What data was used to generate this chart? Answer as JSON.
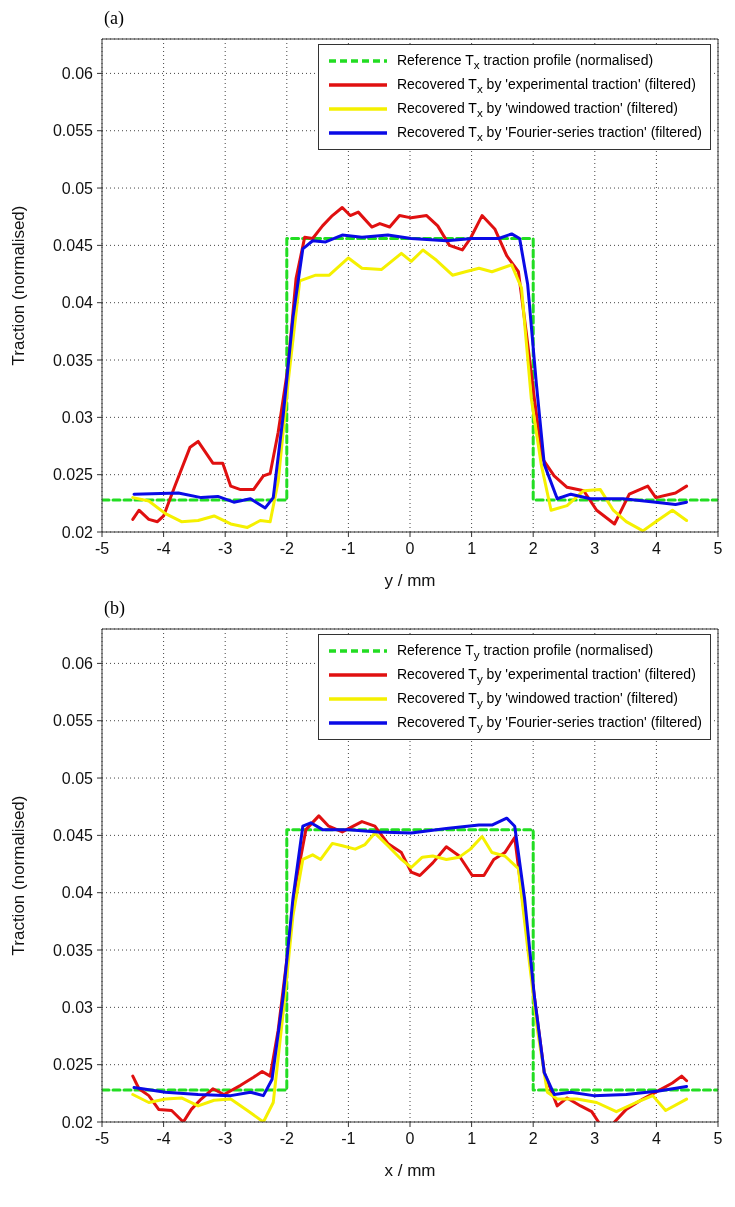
{
  "chart_data": [
    {
      "type": "line",
      "title": "(a)",
      "xlabel": "y / mm",
      "ylabel": "Traction (normalised)",
      "xlim": [
        -5,
        5
      ],
      "xticks": [
        -5,
        -4,
        -3,
        -2,
        -1,
        0,
        1,
        2,
        3,
        4,
        5
      ],
      "ylim": [
        0.02,
        0.063
      ],
      "yticks": [
        0.02,
        0.025,
        0.03,
        0.035,
        0.04,
        0.045,
        0.05,
        0.055,
        0.06
      ],
      "grid": true,
      "legend": "top right",
      "marker": "none",
      "series": [
        {
          "name": "Reference T$_{x}$ traction profile (normalised)",
          "color": "#22dd22",
          "line_style": "dashed",
          "x": [
            -5,
            -2,
            -2,
            2,
            2,
            5
          ],
          "values": [
            0.0228,
            0.0228,
            0.0456,
            0.0456,
            0.0228,
            0.0228
          ]
        },
        {
          "name": "Recovered T$_{x}$ by 'experimental traction' (filtered)",
          "color": "#e01010",
          "line_style": "solid",
          "x": [
            -4.5,
            -4.4,
            -4.24,
            -4.1,
            -4.0,
            -3.81,
            -3.57,
            -3.44,
            -3.2,
            -3.04,
            -2.91,
            -2.75,
            -2.54,
            -2.38,
            -2.27,
            -2.14,
            -1.98,
            -1.85,
            -1.71,
            -1.58,
            -1.42,
            -1.26,
            -1.1,
            -0.97,
            -0.84,
            -0.62,
            -0.49,
            -0.33,
            -0.17,
            0.02,
            0.27,
            0.45,
            0.64,
            0.85,
            0.98,
            1.17,
            1.38,
            1.57,
            1.76,
            1.89,
            2.02,
            2.15,
            2.34,
            2.55,
            2.82,
            3.03,
            3.32,
            3.56,
            3.86,
            3.99,
            4.31,
            4.49
          ],
          "values": [
            0.0211,
            0.0219,
            0.0211,
            0.0209,
            0.0214,
            0.0241,
            0.0274,
            0.0279,
            0.026,
            0.026,
            0.024,
            0.0237,
            0.0237,
            0.0249,
            0.0251,
            0.0287,
            0.0344,
            0.0421,
            0.0457,
            0.0456,
            0.0467,
            0.0476,
            0.0483,
            0.0476,
            0.0479,
            0.0466,
            0.0469,
            0.0466,
            0.0476,
            0.0474,
            0.0476,
            0.0467,
            0.045,
            0.0446,
            0.0456,
            0.0476,
            0.0464,
            0.0441,
            0.0427,
            0.0373,
            0.0316,
            0.0264,
            0.0249,
            0.0239,
            0.0236,
            0.0219,
            0.0207,
            0.0233,
            0.024,
            0.023,
            0.0234,
            0.024
          ]
        },
        {
          "name": "Recovered T$_{x}$ by 'windowed traction' (filtered)",
          "color": "#f5f000",
          "line_style": "solid",
          "x": [
            -4.5,
            -4.24,
            -3.97,
            -3.71,
            -3.44,
            -3.18,
            -2.91,
            -2.64,
            -2.43,
            -2.27,
            -2.14,
            -1.98,
            -1.79,
            -1.53,
            -1.31,
            -1.0,
            -0.78,
            -0.46,
            -0.14,
            0.02,
            0.21,
            0.43,
            0.69,
            0.9,
            1.12,
            1.33,
            1.65,
            1.81,
            1.97,
            2.13,
            2.29,
            2.55,
            2.82,
            3.09,
            3.3,
            3.51,
            3.78,
            3.99,
            4.26,
            4.49
          ],
          "values": [
            0.023,
            0.0227,
            0.0216,
            0.0209,
            0.021,
            0.0214,
            0.0207,
            0.0204,
            0.021,
            0.0209,
            0.0244,
            0.033,
            0.0419,
            0.0424,
            0.0424,
            0.0439,
            0.043,
            0.0429,
            0.0443,
            0.0436,
            0.0446,
            0.0437,
            0.0424,
            0.0427,
            0.043,
            0.0427,
            0.0433,
            0.0413,
            0.0316,
            0.0259,
            0.0219,
            0.0223,
            0.0236,
            0.0237,
            0.0219,
            0.0209,
            0.0201,
            0.0209,
            0.0219,
            0.021
          ]
        },
        {
          "name": "Recovered T$_{x}$ by 'Fourier-series traction' (filtered)",
          "color": "#0a0ae6",
          "line_style": "solid",
          "x": [
            -4.48,
            -3.76,
            -3.39,
            -3.12,
            -2.86,
            -2.59,
            -2.35,
            -2.22,
            -2.06,
            -1.9,
            -1.74,
            -1.58,
            -1.37,
            -1.1,
            -0.78,
            -0.36,
            0.02,
            0.59,
            1.01,
            1.44,
            1.65,
            1.78,
            1.91,
            2.05,
            2.18,
            2.39,
            2.61,
            2.93,
            3.46,
            3.99,
            4.31,
            4.49
          ],
          "values": [
            0.0233,
            0.0234,
            0.023,
            0.0231,
            0.0226,
            0.0229,
            0.0221,
            0.023,
            0.0301,
            0.0387,
            0.0447,
            0.0454,
            0.0453,
            0.0459,
            0.0457,
            0.0459,
            0.0456,
            0.0454,
            0.0456,
            0.0456,
            0.046,
            0.0456,
            0.0416,
            0.033,
            0.0259,
            0.0229,
            0.0233,
            0.0229,
            0.0229,
            0.0226,
            0.0224,
            0.0226
          ]
        }
      ]
    },
    {
      "type": "line",
      "title": "(b)",
      "xlabel": "x / mm",
      "ylabel": "Traction (normalised)",
      "xlim": [
        -5,
        5
      ],
      "xticks": [
        -5,
        -4,
        -3,
        -2,
        -1,
        0,
        1,
        2,
        3,
        4,
        5
      ],
      "ylim": [
        0.02,
        0.063
      ],
      "yticks": [
        0.02,
        0.025,
        0.03,
        0.035,
        0.04,
        0.045,
        0.05,
        0.055,
        0.06
      ],
      "grid": true,
      "legend": "top right",
      "marker": "none",
      "series": [
        {
          "name": "Reference T$_{y}$ traction profile (normalised)",
          "color": "#22dd22",
          "line_style": "dashed",
          "x": [
            -5,
            -2,
            -2,
            2,
            2,
            5
          ],
          "values": [
            0.0228,
            0.0228,
            0.0455,
            0.0455,
            0.0228,
            0.0228
          ]
        },
        {
          "name": "Recovered T$_{y}$ by 'experimental traction' (filtered)",
          "color": "#e01010",
          "line_style": "solid",
          "x": [
            -4.5,
            -4.4,
            -4.24,
            -4.08,
            -3.87,
            -3.68,
            -3.55,
            -3.39,
            -3.2,
            -3.02,
            -2.75,
            -2.54,
            -2.4,
            -2.27,
            -2.14,
            -2.01,
            -1.85,
            -1.69,
            -1.48,
            -1.32,
            -1.1,
            -0.78,
            -0.57,
            -0.36,
            -0.14,
            0.02,
            0.16,
            0.37,
            0.59,
            0.8,
            1.01,
            1.2,
            1.36,
            1.54,
            1.7,
            1.86,
            2.02,
            2.18,
            2.39,
            2.55,
            2.77,
            2.95,
            3.06,
            3.2,
            3.32,
            3.51,
            3.78,
            3.99,
            4.26,
            4.41,
            4.49
          ],
          "values": [
            0.024,
            0.0229,
            0.0223,
            0.0211,
            0.021,
            0.02,
            0.0211,
            0.022,
            0.0229,
            0.0224,
            0.0232,
            0.0239,
            0.0244,
            0.024,
            0.028,
            0.0337,
            0.0409,
            0.0455,
            0.0467,
            0.0458,
            0.0453,
            0.0462,
            0.0458,
            0.0443,
            0.0435,
            0.0418,
            0.0415,
            0.0426,
            0.044,
            0.0432,
            0.0415,
            0.0415,
            0.0429,
            0.0435,
            0.0448,
            0.038,
            0.0309,
            0.0243,
            0.0214,
            0.0221,
            0.0214,
            0.0209,
            0.02,
            null,
            0.02,
            0.0211,
            0.022,
            0.0226,
            0.0234,
            0.024,
            0.0236
          ]
        },
        {
          "name": "Recovered T$_{y}$ by 'windowed traction' (filtered)",
          "color": "#f5f000",
          "line_style": "solid",
          "x": [
            -4.5,
            -4.24,
            -3.97,
            -3.71,
            -3.44,
            -3.18,
            -2.91,
            -2.64,
            -2.38,
            -2.22,
            -2.06,
            -1.9,
            -1.74,
            -1.58,
            -1.45,
            -1.26,
            -1.1,
            -0.89,
            -0.73,
            -0.57,
            -0.36,
            -0.14,
            0.02,
            0.2,
            0.37,
            0.59,
            0.8,
            0.98,
            1.17,
            1.33,
            1.54,
            1.76,
            1.91,
            2.07,
            2.23,
            2.39,
            2.71,
            3.03,
            3.35,
            3.67,
            3.94,
            4.15,
            4.49
          ],
          "values": [
            0.0224,
            0.0217,
            0.022,
            0.0221,
            0.0214,
            0.0219,
            0.022,
            0.021,
            0.02,
            0.0217,
            0.0295,
            0.038,
            0.0429,
            0.0433,
            0.0429,
            0.0443,
            0.0441,
            0.0438,
            0.0442,
            0.0452,
            0.0441,
            0.0429,
            0.0422,
            0.0431,
            0.0432,
            0.0429,
            0.0431,
            0.0438,
            0.0449,
            0.0435,
            0.0432,
            0.0421,
            0.0352,
            0.028,
            0.0226,
            0.022,
            0.022,
            0.0217,
            0.0209,
            0.0217,
            0.0223,
            0.021,
            0.022
          ]
        },
        {
          "name": "Recovered T$_{y}$ by 'Fourier-series traction' (filtered)",
          "color": "#0a0ae6",
          "line_style": "solid",
          "x": [
            -4.48,
            -3.97,
            -3.44,
            -2.91,
            -2.59,
            -2.38,
            -2.24,
            -2.06,
            -1.9,
            -1.74,
            -1.61,
            -1.42,
            -1.0,
            -0.52,
            0.02,
            0.59,
            1.12,
            1.33,
            1.57,
            1.7,
            1.86,
            2.02,
            2.18,
            2.34,
            2.61,
            2.98,
            3.51,
            4.04,
            4.49
          ],
          "values": [
            0.023,
            0.0226,
            0.0224,
            0.0223,
            0.0226,
            0.0223,
            0.0237,
            0.0309,
            0.0395,
            0.0458,
            0.0461,
            0.0455,
            0.0455,
            0.0453,
            0.0452,
            0.0456,
            0.0459,
            0.0459,
            0.0465,
            0.0458,
            0.0395,
            0.0309,
            0.0243,
            0.0224,
            0.0226,
            0.0223,
            0.0224,
            0.0227,
            0.0231
          ]
        }
      ]
    }
  ]
}
